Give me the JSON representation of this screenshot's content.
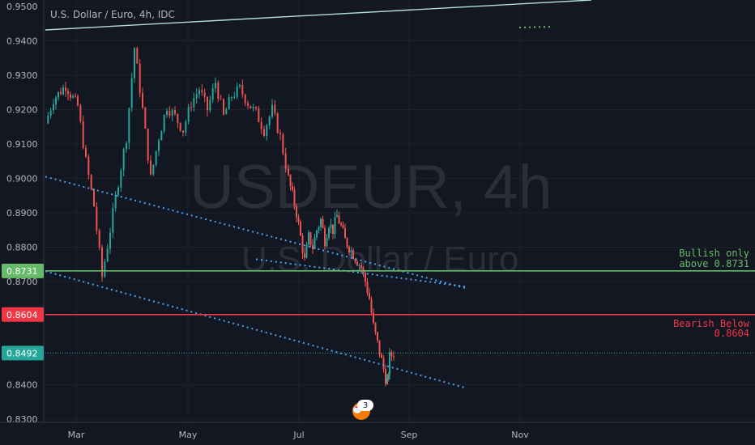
{
  "chart_data": {
    "type": "candlestick",
    "title": "U.S. Dollar / Euro, 4h, IDC",
    "watermark": {
      "symbol": "USDEUR, 4h",
      "description": "U.S. Dollar / Euro"
    },
    "y_ticks": [
      "0.9500",
      "0.9400",
      "0.9300",
      "0.9200",
      "0.9100",
      "0.9000",
      "0.8900",
      "0.8800",
      "0.8700",
      "0.8400",
      "0.8300"
    ],
    "ylim": [
      0.83,
      0.95
    ],
    "x_ticks": [
      "Mar",
      "May",
      "Jul",
      "Sep",
      "Nov"
    ],
    "colors": {
      "up": "#26a69a",
      "down": "#ef5350",
      "bullish": "#66bb6a",
      "bearish": "#f23645",
      "trend": "#42a5f5",
      "current": "#26a69a"
    },
    "price_path": [
      [
        0.0,
        0.916
      ],
      [
        0.02,
        0.923
      ],
      [
        0.05,
        0.927
      ],
      [
        0.08,
        0.921
      ],
      [
        0.1,
        0.905
      ],
      [
        0.12,
        0.892
      ],
      [
        0.14,
        0.8715
      ],
      [
        0.16,
        0.885
      ],
      [
        0.18,
        0.899
      ],
      [
        0.2,
        0.912
      ],
      [
        0.22,
        0.938
      ],
      [
        0.24,
        0.92
      ],
      [
        0.26,
        0.9
      ],
      [
        0.28,
        0.912
      ],
      [
        0.3,
        0.921
      ],
      [
        0.32,
        0.918
      ],
      [
        0.34,
        0.914
      ],
      [
        0.36,
        0.922
      ],
      [
        0.38,
        0.926
      ],
      [
        0.4,
        0.92
      ],
      [
        0.42,
        0.928
      ],
      [
        0.44,
        0.918
      ],
      [
        0.46,
        0.924
      ],
      [
        0.48,
        0.926
      ],
      [
        0.5,
        0.922
      ],
      [
        0.52,
        0.919
      ],
      [
        0.54,
        0.914
      ],
      [
        0.56,
        0.92
      ],
      [
        0.58,
        0.912
      ],
      [
        0.6,
        0.9
      ],
      [
        0.61,
        0.895
      ],
      [
        0.62,
        0.89
      ],
      [
        0.63,
        0.883
      ],
      [
        0.64,
        0.876
      ],
      [
        0.65,
        0.883
      ],
      [
        0.66,
        0.88
      ],
      [
        0.67,
        0.885
      ],
      [
        0.68,
        0.888
      ],
      [
        0.69,
        0.882
      ],
      [
        0.7,
        0.887
      ],
      [
        0.71,
        0.885
      ],
      [
        0.72,
        0.889
      ],
      [
        0.73,
        0.886
      ],
      [
        0.74,
        0.882
      ],
      [
        0.75,
        0.88
      ],
      [
        0.76,
        0.878
      ],
      [
        0.77,
        0.876
      ],
      [
        0.78,
        0.874
      ],
      [
        0.79,
        0.87
      ],
      [
        0.8,
        0.865
      ],
      [
        0.81,
        0.857
      ],
      [
        0.82,
        0.852
      ],
      [
        0.83,
        0.847
      ],
      [
        0.84,
        0.842
      ],
      [
        0.845,
        0.84
      ],
      [
        0.85,
        0.848
      ],
      [
        0.86,
        0.8492
      ]
    ],
    "levels": [
      {
        "name": "bullish-level",
        "value": 0.8731,
        "label": "0.8731",
        "note_lines": [
          "Bullish only",
          "above  0.8731"
        ]
      },
      {
        "name": "bearish-level",
        "value": 0.8604,
        "label": "0.8604",
        "note_lines": [
          "Bearish Below",
          "0.8604"
        ]
      },
      {
        "name": "current-price-level",
        "value": 0.8492,
        "label": "0.8492"
      }
    ],
    "trendlines": [
      {
        "name": "upper-trendline",
        "from": [
          0.0,
          0.9005
        ],
        "to": [
          1.04,
          0.868
        ]
      },
      {
        "name": "lower-trendline",
        "from": [
          0.0,
          0.873
        ],
        "to": [
          1.04,
          0.839
        ]
      },
      {
        "name": "middle-trendline",
        "from": [
          0.52,
          0.8765
        ],
        "to": [
          1.04,
          0.8685
        ]
      }
    ],
    "events_badge": {
      "count": "3"
    }
  }
}
